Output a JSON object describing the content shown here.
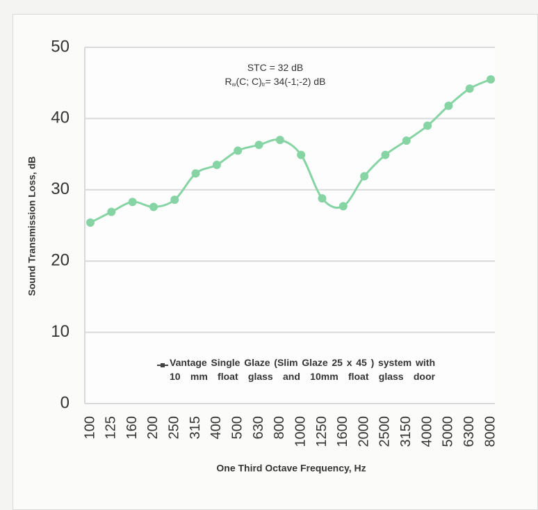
{
  "chart_data": {
    "type": "line",
    "x_label": "One Third Octave Frequency, Hz",
    "y_label": "Sound Transmission Loss, dB",
    "annotations": [
      {
        "parts": [
          "STC = 32 dB"
        ]
      },
      {
        "parts": [
          "R",
          "w",
          "(C; C)",
          "tr",
          "= 34(-1;-2) dB"
        ]
      }
    ],
    "categories": [
      "100",
      "125",
      "160",
      "200",
      "250",
      "315",
      "400",
      "500",
      "630",
      "800",
      "1000",
      "1250",
      "1600",
      "2000",
      "2500",
      "3150",
      "4000",
      "5000",
      "6300",
      "8000"
    ],
    "series": [
      {
        "name": "Vantage Single Glaze (Slim Glaze 25 x 45 ) system with 10 mm float glass and 10mm float glass door",
        "color": "#86d4a4",
        "values": [
          25.4,
          26.9,
          28.3,
          27.6,
          28.6,
          32.3,
          33.5,
          35.5,
          36.3,
          37.0,
          34.9,
          28.8,
          27.7,
          31.9,
          34.9,
          36.9,
          39.0,
          41.8,
          44.2,
          45.5
        ]
      }
    ],
    "ylim": [
      0,
      50
    ],
    "yticks": [
      0,
      10,
      20,
      30,
      40,
      50
    ],
    "grid": true
  }
}
